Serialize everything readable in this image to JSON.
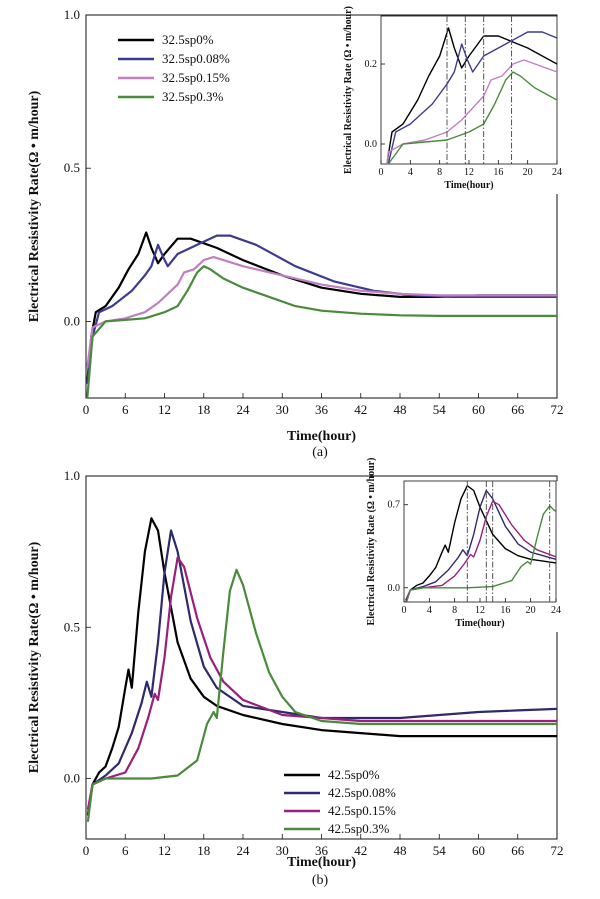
{
  "chart_data": [
    {
      "panel": "(a)",
      "type": "line",
      "xlabel": "Time(hour)",
      "ylabel": "Electrical Resistivity Rate(Ω • m/hour)",
      "xlim": [
        0,
        72
      ],
      "ylim": [
        -0.25,
        1.0
      ],
      "xticks": [
        0,
        6,
        12,
        18,
        24,
        30,
        36,
        42,
        48,
        54,
        60,
        66,
        72
      ],
      "yticks": [
        0.0,
        0.5,
        1.0
      ],
      "ytick_labels": [
        "0.0",
        "0.5",
        "1.0"
      ],
      "legend_position": "top-left",
      "series": [
        {
          "name": "32.5sp0%",
          "color": "#000000",
          "points": [
            [
              0.2,
              -0.2
            ],
            [
              0.8,
              -0.05
            ],
            [
              1.5,
              0.03
            ],
            [
              3,
              0.05
            ],
            [
              5,
              0.11
            ],
            [
              6.5,
              0.17
            ],
            [
              8,
              0.22
            ],
            [
              9.2,
              0.29
            ],
            [
              10,
              0.24
            ],
            [
              11,
              0.19
            ],
            [
              12,
              0.22
            ],
            [
              14,
              0.27
            ],
            [
              16,
              0.27
            ],
            [
              20,
              0.24
            ],
            [
              24,
              0.2
            ],
            [
              30,
              0.15
            ],
            [
              36,
              0.11
            ],
            [
              42,
              0.09
            ],
            [
              48,
              0.08
            ],
            [
              54,
              0.08
            ],
            [
              60,
              0.085
            ],
            [
              66,
              0.085
            ],
            [
              72,
              0.085
            ]
          ]
        },
        {
          "name": "32.5sp0.08%",
          "color": "#3d3b8e",
          "points": [
            [
              0.2,
              -0.2
            ],
            [
              1,
              -0.05
            ],
            [
              2,
              0.03
            ],
            [
              4,
              0.05
            ],
            [
              7,
              0.1
            ],
            [
              9,
              0.15
            ],
            [
              10,
              0.18
            ],
            [
              11,
              0.25
            ],
            [
              11.8,
              0.21
            ],
            [
              12.5,
              0.18
            ],
            [
              14,
              0.22
            ],
            [
              17,
              0.25
            ],
            [
              20,
              0.28
            ],
            [
              22,
              0.28
            ],
            [
              26,
              0.25
            ],
            [
              32,
              0.18
            ],
            [
              38,
              0.13
            ],
            [
              44,
              0.1
            ],
            [
              50,
              0.085
            ],
            [
              56,
              0.08
            ],
            [
              62,
              0.08
            ],
            [
              68,
              0.08
            ],
            [
              72,
              0.08
            ]
          ]
        },
        {
          "name": "32.5sp0.15%",
          "color": "#c080c0",
          "points": [
            [
              0.2,
              -0.15
            ],
            [
              1,
              -0.02
            ],
            [
              3,
              0.0
            ],
            [
              6,
              0.01
            ],
            [
              9,
              0.03
            ],
            [
              11,
              0.06
            ],
            [
              13,
              0.1
            ],
            [
              14,
              0.12
            ],
            [
              15,
              0.16
            ],
            [
              16.5,
              0.17
            ],
            [
              18,
              0.2
            ],
            [
              19.5,
              0.21
            ],
            [
              21,
              0.2
            ],
            [
              24,
              0.18
            ],
            [
              30,
              0.15
            ],
            [
              36,
              0.12
            ],
            [
              42,
              0.1
            ],
            [
              48,
              0.09
            ],
            [
              54,
              0.085
            ],
            [
              60,
              0.085
            ],
            [
              66,
              0.085
            ],
            [
              72,
              0.085
            ]
          ]
        },
        {
          "name": "32.5sp0.3%",
          "color": "#4a8a3c",
          "points": [
            [
              0.2,
              -0.25
            ],
            [
              1,
              -0.05
            ],
            [
              3,
              0.0
            ],
            [
              6,
              0.005
            ],
            [
              9,
              0.01
            ],
            [
              12,
              0.03
            ],
            [
              14,
              0.05
            ],
            [
              15.5,
              0.1
            ],
            [
              17,
              0.16
            ],
            [
              18,
              0.18
            ],
            [
              19,
              0.17
            ],
            [
              21,
              0.14
            ],
            [
              24,
              0.11
            ],
            [
              28,
              0.08
            ],
            [
              32,
              0.05
            ],
            [
              36,
              0.035
            ],
            [
              42,
              0.025
            ],
            [
              48,
              0.02
            ],
            [
              54,
              0.018
            ],
            [
              60,
              0.018
            ],
            [
              66,
              0.018
            ],
            [
              72,
              0.018
            ]
          ]
        }
      ],
      "inset": {
        "xlabel": "Time(hour)",
        "ylabel": "Electrical Resistivity Rate (Ω • m/hour)",
        "xlim": [
          0,
          24
        ],
        "ylim": [
          -0.05,
          0.32
        ],
        "xticks": [
          0,
          4,
          8,
          12,
          16,
          20,
          24
        ],
        "yticks": [
          0.0,
          0.2
        ],
        "ytick_labels": [
          "0.0",
          "0.2"
        ],
        "vlines": [
          9,
          11.5,
          14,
          17.8
        ]
      }
    },
    {
      "panel": "(b)",
      "type": "line",
      "xlabel": "Time(hour)",
      "ylabel": "Electrical Resistivity Rate(Ω • m/hour)",
      "xlim": [
        0,
        72
      ],
      "ylim": [
        -0.2,
        1.0
      ],
      "xticks": [
        0,
        6,
        12,
        18,
        24,
        30,
        36,
        42,
        48,
        54,
        60,
        66,
        72
      ],
      "yticks": [
        0.0,
        0.5,
        1.0
      ],
      "ytick_labels": [
        "0.0",
        "0.5",
        "1.0"
      ],
      "legend_position": "bottom-center",
      "series": [
        {
          "name": "42.5sp0%",
          "color": "#000000",
          "points": [
            [
              0.3,
              -0.12
            ],
            [
              1,
              -0.02
            ],
            [
              2,
              0.02
            ],
            [
              3,
              0.04
            ],
            [
              4,
              0.1
            ],
            [
              5,
              0.17
            ],
            [
              6,
              0.3
            ],
            [
              6.5,
              0.36
            ],
            [
              7,
              0.3
            ],
            [
              8,
              0.55
            ],
            [
              9,
              0.75
            ],
            [
              10,
              0.86
            ],
            [
              11,
              0.82
            ],
            [
              12,
              0.68
            ],
            [
              14,
              0.45
            ],
            [
              16,
              0.33
            ],
            [
              18,
              0.27
            ],
            [
              20,
              0.24
            ],
            [
              24,
              0.21
            ],
            [
              30,
              0.18
            ],
            [
              36,
              0.16
            ],
            [
              42,
              0.15
            ],
            [
              48,
              0.14
            ],
            [
              54,
              0.14
            ],
            [
              60,
              0.14
            ],
            [
              66,
              0.14
            ],
            [
              72,
              0.14
            ]
          ]
        },
        {
          "name": "42.5sp0.08%",
          "color": "#2e2a6b",
          "points": [
            [
              0.3,
              -0.12
            ],
            [
              1,
              -0.02
            ],
            [
              3,
              0.01
            ],
            [
              5,
              0.05
            ],
            [
              7,
              0.15
            ],
            [
              8.5,
              0.25
            ],
            [
              9.3,
              0.32
            ],
            [
              10,
              0.27
            ],
            [
              11,
              0.45
            ],
            [
              12,
              0.68
            ],
            [
              13,
              0.82
            ],
            [
              14,
              0.75
            ],
            [
              16,
              0.52
            ],
            [
              18,
              0.37
            ],
            [
              20,
              0.3
            ],
            [
              24,
              0.24
            ],
            [
              30,
              0.22
            ],
            [
              36,
              0.2
            ],
            [
              42,
              0.2
            ],
            [
              48,
              0.2
            ],
            [
              54,
              0.21
            ],
            [
              60,
              0.22
            ],
            [
              66,
              0.225
            ],
            [
              72,
              0.23
            ]
          ]
        },
        {
          "name": "42.5sp0.15%",
          "color": "#9a1f7a",
          "points": [
            [
              0.3,
              -0.1
            ],
            [
              1,
              -0.02
            ],
            [
              3,
              0.0
            ],
            [
              6,
              0.02
            ],
            [
              8,
              0.1
            ],
            [
              9.5,
              0.2
            ],
            [
              10.5,
              0.28
            ],
            [
              11,
              0.26
            ],
            [
              12,
              0.4
            ],
            [
              13,
              0.6
            ],
            [
              14,
              0.73
            ],
            [
              15,
              0.7
            ],
            [
              17,
              0.53
            ],
            [
              19,
              0.4
            ],
            [
              21,
              0.32
            ],
            [
              24,
              0.26
            ],
            [
              30,
              0.21
            ],
            [
              36,
              0.2
            ],
            [
              42,
              0.19
            ],
            [
              48,
              0.19
            ],
            [
              54,
              0.19
            ],
            [
              60,
              0.19
            ],
            [
              66,
              0.19
            ],
            [
              72,
              0.19
            ]
          ]
        },
        {
          "name": "42.5sp0.3%",
          "color": "#4a8a3c",
          "points": [
            [
              0.3,
              -0.14
            ],
            [
              1,
              -0.02
            ],
            [
              3,
              0.0
            ],
            [
              6,
              0.0
            ],
            [
              10,
              0.0
            ],
            [
              14,
              0.01
            ],
            [
              17,
              0.06
            ],
            [
              18.5,
              0.18
            ],
            [
              19.5,
              0.22
            ],
            [
              20,
              0.2
            ],
            [
              21,
              0.42
            ],
            [
              22,
              0.62
            ],
            [
              23,
              0.69
            ],
            [
              24,
              0.64
            ],
            [
              26,
              0.48
            ],
            [
              28,
              0.35
            ],
            [
              30,
              0.27
            ],
            [
              32,
              0.22
            ],
            [
              36,
              0.19
            ],
            [
              42,
              0.18
            ],
            [
              48,
              0.18
            ],
            [
              54,
              0.18
            ],
            [
              60,
              0.18
            ],
            [
              66,
              0.18
            ],
            [
              72,
              0.18
            ]
          ]
        }
      ],
      "inset": {
        "xlabel": "Time(hour)",
        "ylabel": "Electrical Resistivity Rate (Ω • m/hour)",
        "xlim": [
          0,
          24
        ],
        "ylim": [
          -0.12,
          0.9
        ],
        "xticks": [
          0,
          4,
          8,
          12,
          16,
          20,
          24
        ],
        "yticks": [
          0.0,
          0.7
        ],
        "ytick_labels": [
          "0.0",
          "0.7"
        ],
        "vlines": [
          10,
          13,
          14,
          23
        ]
      }
    }
  ]
}
